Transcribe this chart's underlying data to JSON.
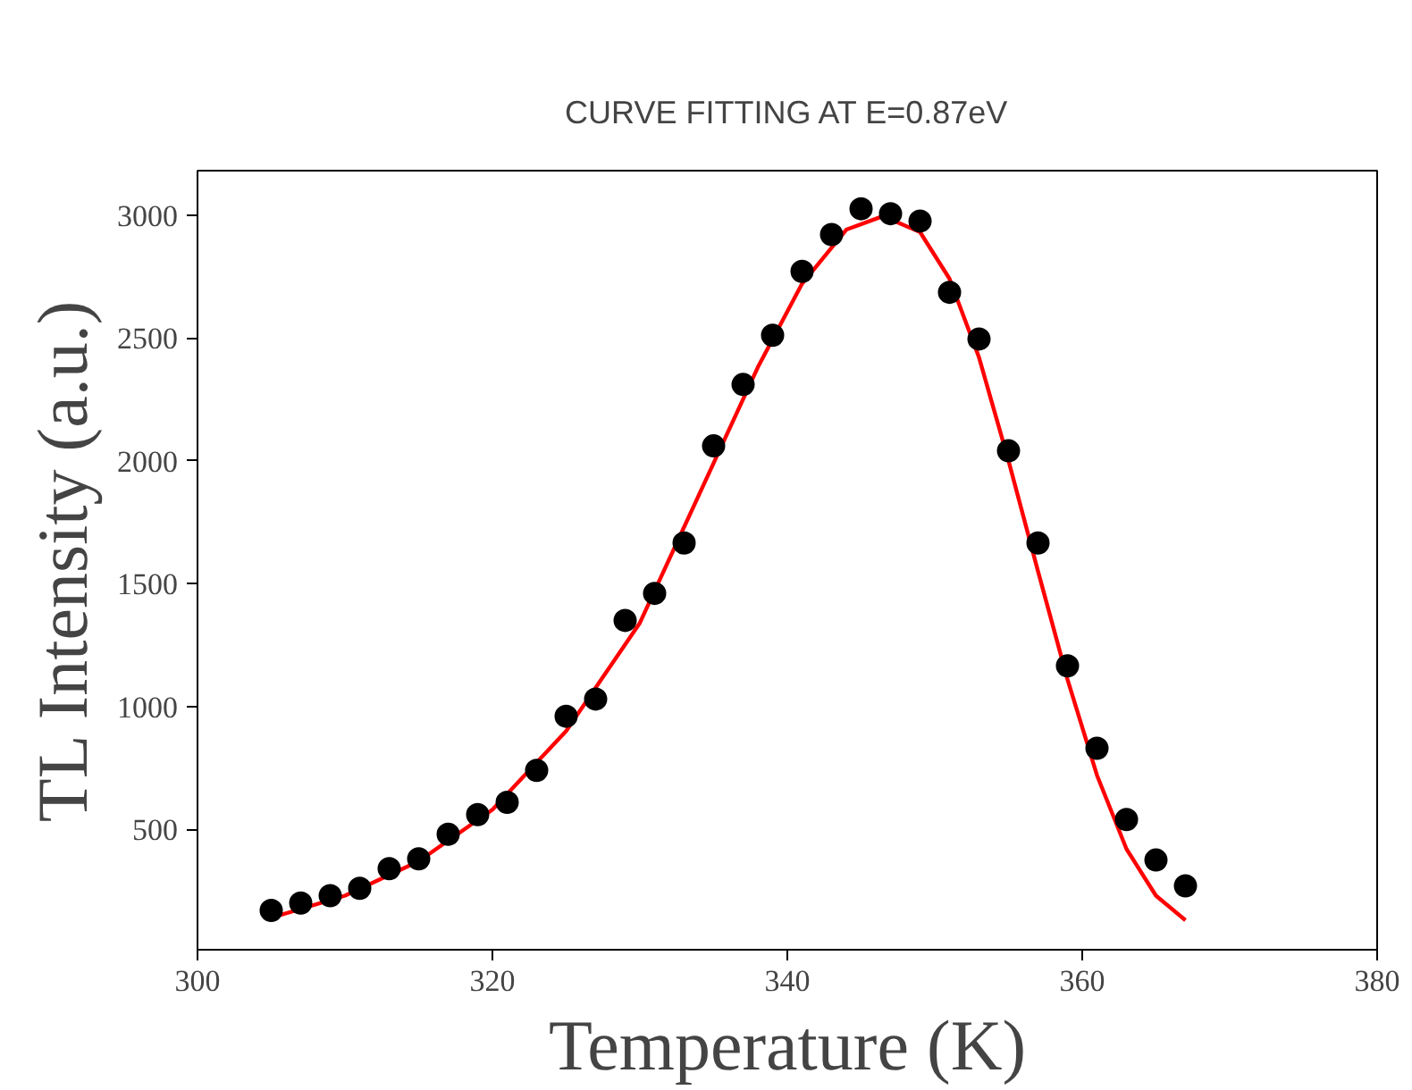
{
  "chart_data": {
    "type": "scatter",
    "title": "CURVE FITTING AT E=0.87eV",
    "xlabel": "Temperature (K)",
    "ylabel": "TL Intensity (a.u.)",
    "xlim": [
      300,
      380
    ],
    "xticks": [
      300,
      320,
      340,
      360,
      380
    ],
    "ylim": [
      10,
      3180
    ],
    "yticks": [
      500,
      1000,
      1500,
      2000,
      2500,
      3000
    ],
    "grid": false,
    "series": [
      {
        "marker": "circle",
        "color": "#000000",
        "x": [
          305,
          307,
          309,
          311,
          313,
          315,
          317,
          319,
          321,
          323,
          325,
          327,
          329,
          331,
          333,
          335,
          337,
          339,
          341,
          343,
          345,
          347,
          349,
          351,
          353,
          355,
          357,
          359,
          361,
          363,
          365,
          367
        ],
        "values": [
          170,
          200,
          230,
          260,
          340,
          380,
          480,
          560,
          610,
          740,
          960,
          1030,
          1350,
          1460,
          1665,
          2060,
          2310,
          2510,
          2770,
          2920,
          3025,
          3005,
          2975,
          2685,
          2495,
          2040,
          1665,
          1165,
          830,
          540,
          375,
          270
        ]
      },
      {
        "type": "line",
        "line_style": "solid",
        "color": "#ff0000",
        "x": [
          305,
          310,
          315,
          320,
          325,
          330,
          335,
          338,
          341,
          344,
          346.5,
          349,
          351,
          353,
          355,
          357,
          359,
          361,
          363,
          365,
          367
        ],
        "values": [
          140,
          230,
          370,
          580,
          900,
          1340,
          1990,
          2380,
          2720,
          2940,
          2995,
          2930,
          2740,
          2420,
          2000,
          1550,
          1110,
          720,
          420,
          230,
          130
        ]
      }
    ]
  }
}
